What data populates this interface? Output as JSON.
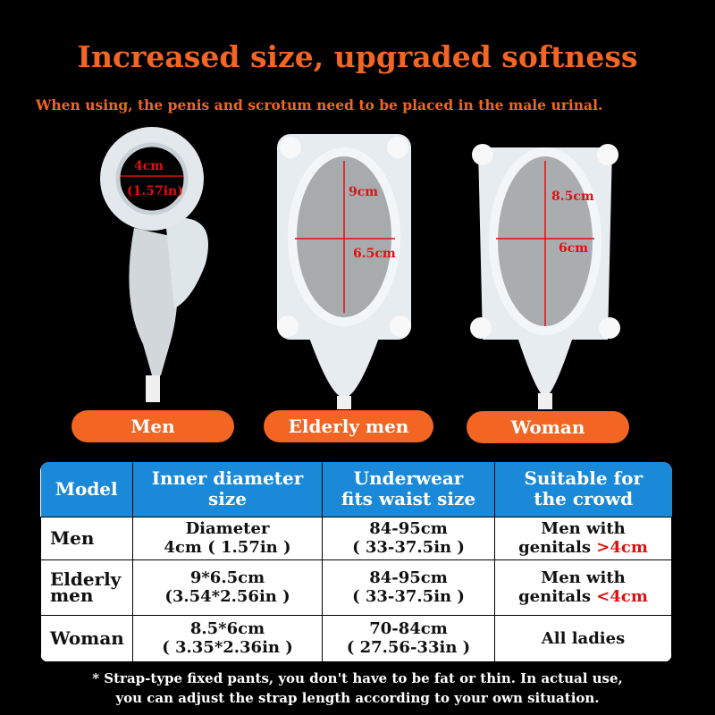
{
  "title": "Increased size, upgraded softness",
  "subtitle": "When using, the penis and scrotum need to be placed in the male urinal.",
  "products": [
    {
      "label": "Men",
      "dims": [
        "4cm",
        "(1.57in)"
      ]
    },
    {
      "label": "Elderly men",
      "dims": [
        "9cm",
        "6.5cm"
      ]
    },
    {
      "label": "Woman",
      "dims": [
        "8.5cm",
        "6cm"
      ]
    }
  ],
  "table": {
    "headers": [
      "Model",
      "Inner diameter size",
      "Underwear fits waist size",
      "Suitable for the crowd"
    ],
    "rows": [
      {
        "model": "Men",
        "inner": [
          "Diameter",
          "4cm ( 1.57in )"
        ],
        "waist": [
          "84-95cm",
          "( 33-37.5in )"
        ],
        "crowd": [
          "Men with",
          "genitals ",
          ">4cm"
        ]
      },
      {
        "model": "Elderly men",
        "inner": [
          "9*6.5cm",
          "(3.54*2.56in )"
        ],
        "waist": [
          "84-95cm",
          "( 33-37.5in )"
        ],
        "crowd": [
          "Men with",
          "genitals ",
          "<4cm"
        ]
      },
      {
        "model": "Woman",
        "inner": [
          "8.5*6cm",
          "( 3.35*2.36in )"
        ],
        "waist": [
          "70-84cm",
          "( 27.56-33in )"
        ],
        "crowd": [
          "All ladies",
          "",
          ""
        ]
      }
    ]
  },
  "note": [
    "* Strap-type fixed pants, you don't have to be fat or thin. In actual use,",
    "you can adjust the strap length according to your own situation."
  ]
}
